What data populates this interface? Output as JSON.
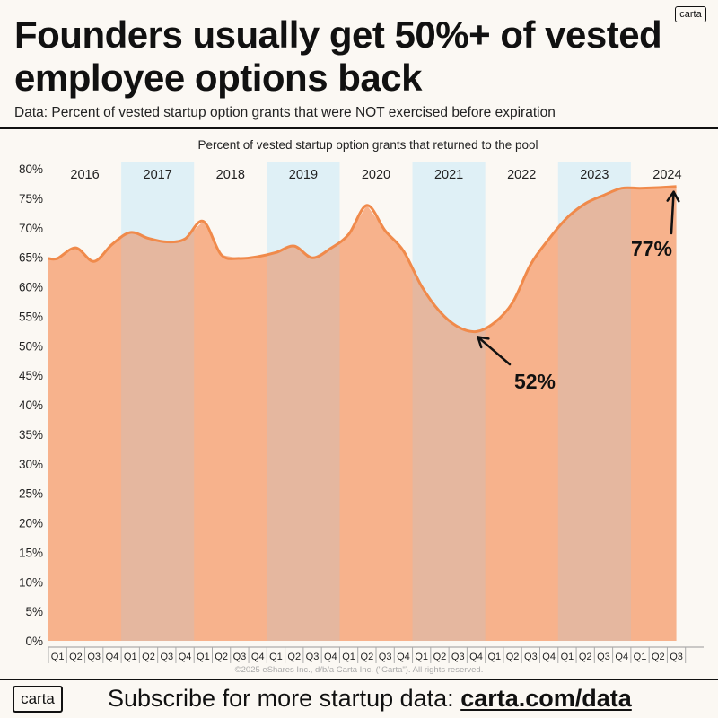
{
  "brand": {
    "logo_text": "carta"
  },
  "header": {
    "title": "Founders usually get 50%+ of vested employee options back",
    "subtitle": "Data: Percent of vested startup option grants that were NOT exercised before expiration"
  },
  "chart_data": {
    "type": "area",
    "title": "Percent of vested startup option grants that returned to the pool",
    "ylabel": "",
    "xlabel": "",
    "ylim": [
      0,
      80
    ],
    "yticks": [
      0,
      5,
      10,
      15,
      20,
      25,
      30,
      35,
      40,
      45,
      50,
      55,
      60,
      65,
      70,
      75,
      80
    ],
    "ytick_labels": [
      "0%",
      "5%",
      "10%",
      "15%",
      "20%",
      "25%",
      "30%",
      "35%",
      "40%",
      "45%",
      "50%",
      "55%",
      "60%",
      "65%",
      "70%",
      "75%",
      "80%"
    ],
    "years": [
      "2016",
      "2017",
      "2018",
      "2019",
      "2020",
      "2021",
      "2022",
      "2023",
      "2024"
    ],
    "shaded_years": [
      "2017",
      "2019",
      "2021",
      "2023"
    ],
    "quarter_labels": [
      "Q1",
      "Q2",
      "Q3",
      "Q4",
      "Q1",
      "Q2",
      "Q3",
      "Q4",
      "Q1",
      "Q2",
      "Q3",
      "Q4",
      "Q1",
      "Q2",
      "Q3",
      "Q4",
      "Q1",
      "Q2",
      "Q3",
      "Q4",
      "Q1",
      "Q2",
      "Q3",
      "Q4",
      "Q1",
      "Q2",
      "Q3",
      "Q4",
      "Q1",
      "Q2",
      "Q3",
      "Q4",
      "Q1",
      "Q2",
      "Q3"
    ],
    "series": [
      {
        "name": "Percent of vested startup option grants that returned to the pool",
        "values": [
          64.8,
          66.6,
          64.3,
          67.2,
          69.2,
          68.2,
          67.6,
          68.1,
          71.1,
          65.4,
          64.8,
          65.1,
          65.8,
          66.9,
          64.9,
          66.5,
          68.9,
          73.8,
          69.5,
          66.1,
          60.1,
          55.8,
          53.2,
          52.4,
          53.9,
          57.3,
          63.8,
          68.1,
          71.7,
          74.1,
          75.5,
          76.7,
          76.7,
          76.8,
          77.0
        ]
      }
    ],
    "annotations": [
      {
        "text": "52%",
        "value": 52
      },
      {
        "text": "77%",
        "value": 77
      }
    ],
    "copyright": "©2025 eShares Inc., d/b/a Carta Inc. (\"Carta\"). All rights reserved."
  },
  "footer": {
    "cta": "Subscribe for more startup data: ",
    "link": "carta.com/data"
  },
  "colors": {
    "line": "#f08a4b",
    "area": "#f7b28c",
    "shade": "#dff0f6",
    "overlap": "#e5b79f"
  }
}
